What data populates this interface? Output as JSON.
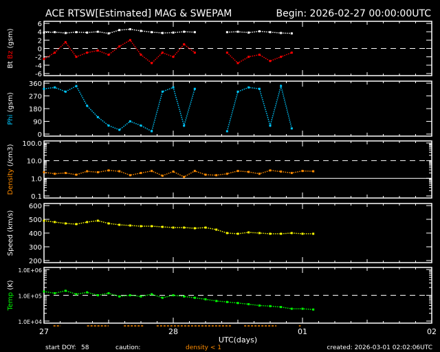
{
  "header": {
    "title": "ACE RTSW[Estimated] MAG & SWEPAM",
    "begin": "Begin: 2026-02-27 00:00:00UTC"
  },
  "footer": {
    "start_doy_label": "start DOY:",
    "start_doy": "58",
    "caution_label": "caution:",
    "caution_text": "density < 1",
    "created": "created: 2026-03-01 02:02:06UTC"
  },
  "colors": {
    "bt": "#ffffff",
    "bz": "#ff0000",
    "phi": "#00c8ff",
    "density": "#ff8c00",
    "speed": "#ffff00",
    "temp": "#00ff00",
    "caution": "#ff8c00"
  },
  "chart_data": [
    {
      "type": "scatter",
      "ylabel_parts": [
        "Bt",
        "Bz",
        "(gsm)"
      ],
      "ylim": [
        -6,
        6
      ],
      "yticks": [
        "6",
        "4",
        "2",
        "0",
        "-2",
        "-4",
        "-6"
      ],
      "reference_lines": [
        {
          "y": 0,
          "style": "dashed"
        }
      ],
      "x": [
        "02-27 00:00",
        "02-27 02:00",
        "02-27 04:00",
        "02-27 06:00",
        "02-27 08:00",
        "02-27 10:00",
        "02-27 12:00",
        "02-27 14:00",
        "02-27 16:00",
        "02-27 18:00",
        "02-27 20:00",
        "02-27 22:00",
        "02-28 00:00",
        "02-28 02:00",
        "02-28 04:00",
        "02-28 06:00",
        "02-28 08:00",
        "02-28 10:00",
        "02-28 12:00",
        "02-28 14:00",
        "02-28 16:00",
        "02-28 18:00",
        "02-28 20:00",
        "02-28 22:00",
        "03-01 00:00",
        "03-01 02:00"
      ],
      "series": [
        {
          "name": "Bt",
          "color": "#ffffff",
          "values": [
            3.8,
            3.9,
            3.7,
            3.9,
            3.8,
            4.0,
            3.6,
            4.4,
            4.6,
            4.2,
            3.9,
            3.7,
            3.8,
            4.0,
            3.9,
            null,
            null,
            3.9,
            4.0,
            3.8,
            4.1,
            3.9,
            3.7,
            3.6,
            null,
            null
          ]
        },
        {
          "name": "Bz",
          "color": "#ff0000",
          "values": [
            -2.5,
            -1,
            1.5,
            -2,
            -1,
            -0.5,
            -1.5,
            0.5,
            2,
            -1.5,
            -3.5,
            -1,
            -2,
            1,
            -1,
            null,
            null,
            -1,
            -3.5,
            -2,
            -1.5,
            -3,
            -2,
            -1,
            null,
            null
          ]
        }
      ]
    },
    {
      "type": "scatter",
      "ylabel_parts": [
        "Phi",
        "(gsm)"
      ],
      "ylim": [
        0,
        360
      ],
      "yticks": [
        "360",
        "270",
        "180",
        "90",
        "0"
      ],
      "series": [
        {
          "name": "Phi",
          "color": "#00c8ff",
          "values": [
            320,
            330,
            300,
            340,
            200,
            120,
            60,
            30,
            90,
            60,
            20,
            300,
            330,
            60,
            320,
            null,
            null,
            20,
            300,
            330,
            320,
            60,
            340,
            40,
            null,
            null
          ]
        }
      ]
    },
    {
      "type": "scatter",
      "scale": "log",
      "ylabel_parts": [
        "Density",
        "(/cm3)"
      ],
      "ylim": [
        0.1,
        100
      ],
      "yticks": [
        "100.0",
        "10.0",
        "1.0",
        "0.1"
      ],
      "reference_lines": [
        {
          "y": 10,
          "style": "dashed"
        },
        {
          "y": 1,
          "style": "solid"
        }
      ],
      "series": [
        {
          "name": "Density",
          "color": "#ff8c00",
          "values": [
            2.2,
            1.8,
            2.0,
            1.6,
            2.5,
            2.2,
            2.8,
            2.5,
            1.5,
            2.0,
            2.6,
            1.4,
            2.4,
            1.2,
            2.6,
            1.6,
            1.5,
            1.8,
            2.6,
            2.3,
            1.8,
            2.8,
            2.4,
            2.0,
            2.6,
            2.5
          ]
        }
      ]
    },
    {
      "type": "scatter",
      "ylabel_parts": [
        "Speed",
        "(km/s)"
      ],
      "ylim": [
        200,
        600
      ],
      "yticks": [
        "600",
        "500",
        "400",
        "300",
        "200"
      ],
      "series": [
        {
          "name": "Speed",
          "color": "#ffff00",
          "values": [
            490,
            480,
            470,
            465,
            480,
            490,
            470,
            460,
            455,
            450,
            450,
            445,
            440,
            440,
            435,
            440,
            425,
            400,
            395,
            405,
            400,
            395,
            395,
            400,
            395,
            395
          ]
        }
      ]
    },
    {
      "type": "scatter",
      "scale": "log",
      "ylabel_parts": [
        "Temp",
        "(K)"
      ],
      "ylim": [
        10000,
        1000000
      ],
      "yticks": [
        "1.0E+06",
        "1.0E+05",
        "1.0E+04"
      ],
      "reference_lines": [
        {
          "y": 100000,
          "style": "dashed"
        }
      ],
      "series": [
        {
          "name": "Temp",
          "color": "#00ff00",
          "values": [
            140000,
            120000,
            150000,
            110000,
            130000,
            100000,
            120000,
            90000,
            100000,
            90000,
            110000,
            80000,
            100000,
            90000,
            80000,
            70000,
            60000,
            55000,
            50000,
            45000,
            40000,
            38000,
            35000,
            30000,
            30000,
            28000
          ]
        }
      ]
    }
  ],
  "xaxis": {
    "label": "UTC(days)",
    "ticks": [
      {
        "t": "02-27 00:00",
        "label": "27"
      },
      {
        "t": "02-28 00:00",
        "label": "28"
      },
      {
        "t": "03-01 00:00",
        "label": "01"
      },
      {
        "t": "03-02 00:00",
        "label": "02"
      }
    ],
    "range": [
      "02-27 00:00",
      "03-02 00:00"
    ]
  },
  "caution_intervals": [
    [
      "02-27 01:45",
      "02-27 03:05"
    ],
    [
      "02-27 08:00",
      "02-27 12:00"
    ],
    [
      "02-27 14:50",
      "02-27 18:30"
    ],
    [
      "02-27 20:55",
      "02-28 10:45"
    ],
    [
      "02-28 13:10",
      "02-28 19:10"
    ],
    [
      "02-28 23:20",
      "02-28 23:40"
    ]
  ]
}
